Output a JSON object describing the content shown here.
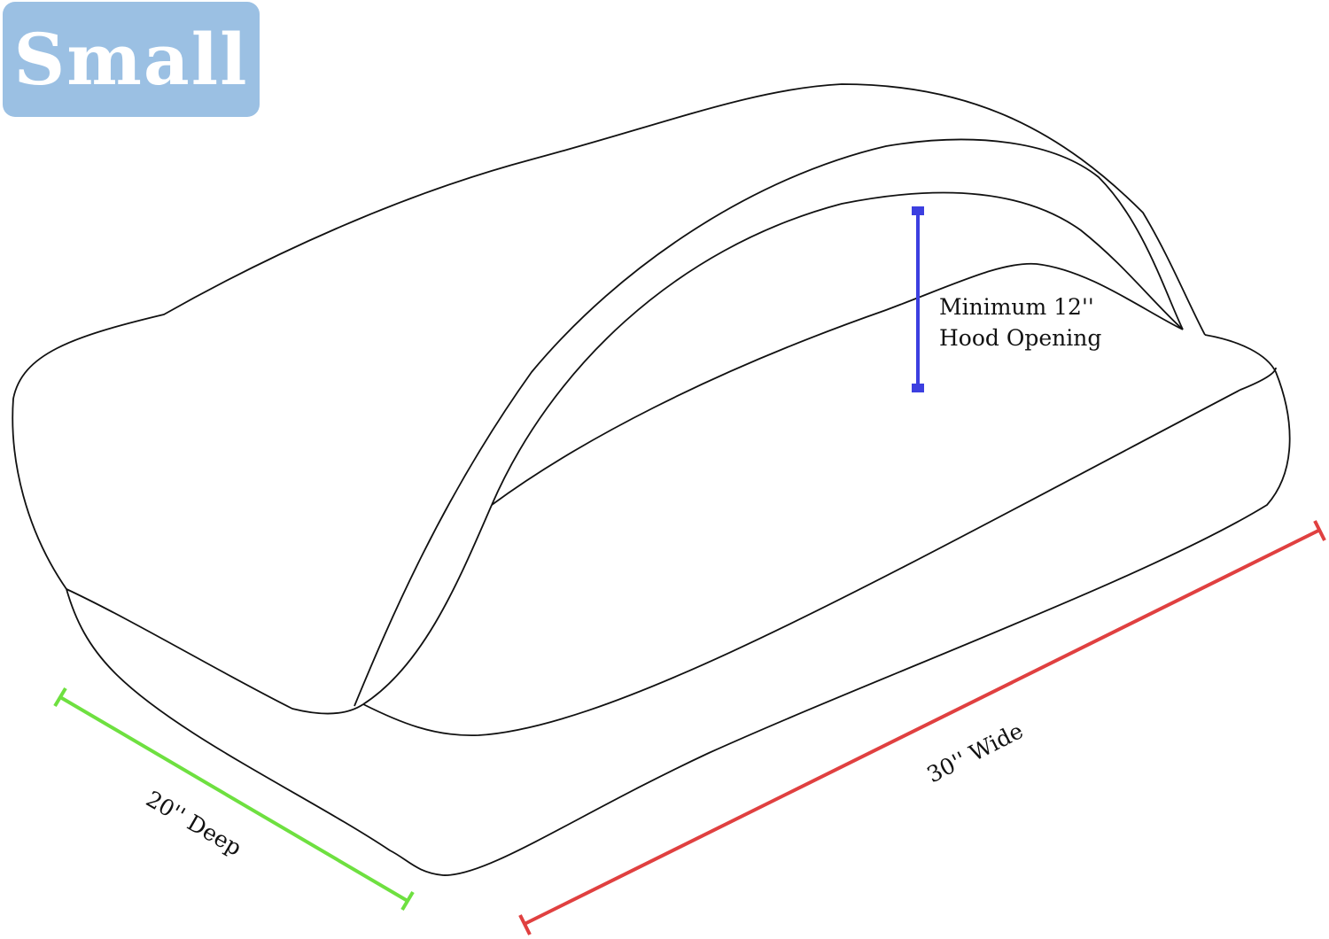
{
  "size_badge": {
    "label": "Small",
    "color": "#9bc0e3"
  },
  "dimensions": {
    "hood": {
      "line1": "Minimum 12''",
      "line2": "Hood Opening",
      "color": "#3c3fe0"
    },
    "depth": {
      "label": "20'' Deep",
      "color": "#6ee040"
    },
    "width": {
      "label": "30'' Wide",
      "color": "#e04040"
    }
  }
}
